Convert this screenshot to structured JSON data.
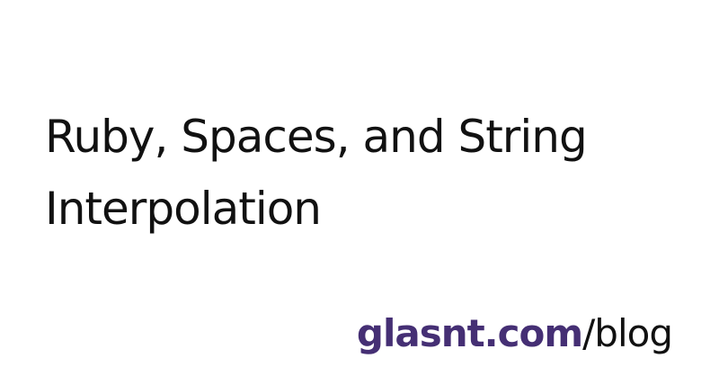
{
  "post": {
    "title": "Ruby, Spaces, and String Interpolation"
  },
  "footer": {
    "domain": "glasnt.com",
    "path": "/blog"
  },
  "colors": {
    "background": "#ffffff",
    "title_text": "#111111",
    "domain_accent": "#452f74"
  }
}
